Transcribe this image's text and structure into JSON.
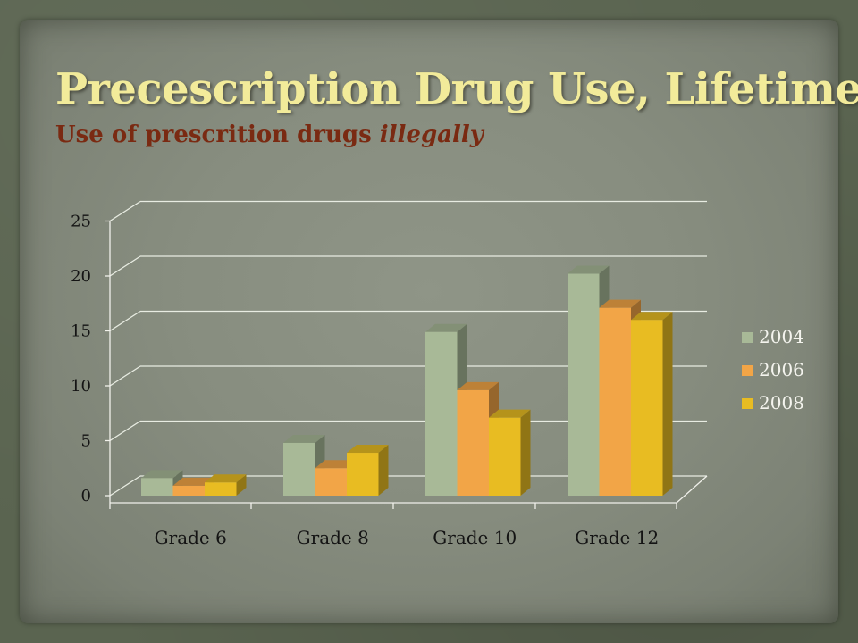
{
  "slide": {
    "title": "Precescription Drug Use, Lifetime",
    "subtitle_prefix": "Use of prescrition drugs ",
    "subtitle_italic": "illegally"
  },
  "colors": {
    "title": "#f2eb9a",
    "subtitle": "#7a2a12",
    "series_2004": "#a8b997",
    "series_2006": "#f2a547",
    "series_2008": "#e8bc22"
  },
  "chart_data": {
    "type": "bar",
    "title": "",
    "xlabel": "",
    "ylabel": "",
    "categories": [
      "Grade 6",
      "Grade 8",
      "Grade 10",
      "Grade 12"
    ],
    "series": [
      {
        "name": "2004",
        "values": [
          1.6,
          4.8,
          14.9,
          20.2
        ]
      },
      {
        "name": "2006",
        "values": [
          0.9,
          2.5,
          9.6,
          17.1
        ]
      },
      {
        "name": "2008",
        "values": [
          1.2,
          3.9,
          7.1,
          16.0
        ]
      }
    ],
    "ylim": [
      0,
      25
    ],
    "yticks": [
      "0",
      "5",
      "10",
      "15",
      "20",
      "25"
    ],
    "grid": true,
    "legend_position": "right",
    "style": "3d-clustered-column"
  }
}
